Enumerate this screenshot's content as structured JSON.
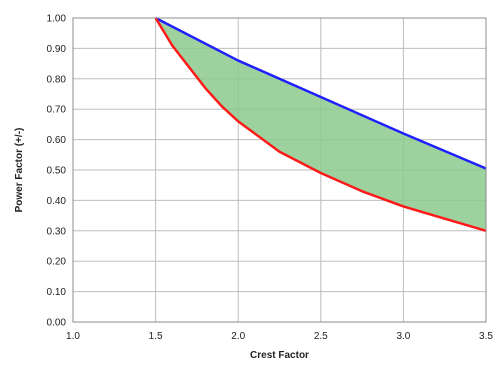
{
  "chart_data": {
    "type": "area",
    "xlabel": "Crest Factor",
    "ylabel": "Power Factor (+/-)",
    "xlim": [
      1.0,
      3.5
    ],
    "ylim": [
      0.0,
      1.0
    ],
    "grid": true,
    "legend": "none",
    "x_ticks": [
      1.0,
      1.5,
      2.0,
      2.5,
      3.0,
      3.5
    ],
    "x_tick_labels": [
      "1.0",
      "1.5",
      "2.0",
      "2.5",
      "3.0",
      "3.5"
    ],
    "y_ticks": [
      0.0,
      0.1,
      0.2,
      0.3,
      0.4,
      0.5,
      0.6,
      0.7,
      0.8,
      0.9,
      1.0
    ],
    "y_tick_labels": [
      "0.00",
      "0.10",
      "0.20",
      "0.30",
      "0.40",
      "0.50",
      "0.60",
      "0.70",
      "0.80",
      "0.90",
      "1.00"
    ],
    "series": [
      {
        "color": "#1f1fff",
        "x": [
          1.5,
          2.0,
          2.5,
          3.0,
          3.5
        ],
        "y": [
          1.0,
          0.86,
          0.74,
          0.62,
          0.505
        ]
      },
      {
        "color": "#ff1a1a",
        "x": [
          1.5,
          1.6,
          1.7,
          1.8,
          1.9,
          2.0,
          2.25,
          2.5,
          2.75,
          3.0,
          3.25,
          3.5
        ],
        "y": [
          1.0,
          0.91,
          0.84,
          0.77,
          0.71,
          0.66,
          0.56,
          0.49,
          0.43,
          0.38,
          0.34,
          0.3
        ]
      }
    ],
    "fill_between": {
      "color": "#8cc98c",
      "opacity": 0.85
    }
  }
}
